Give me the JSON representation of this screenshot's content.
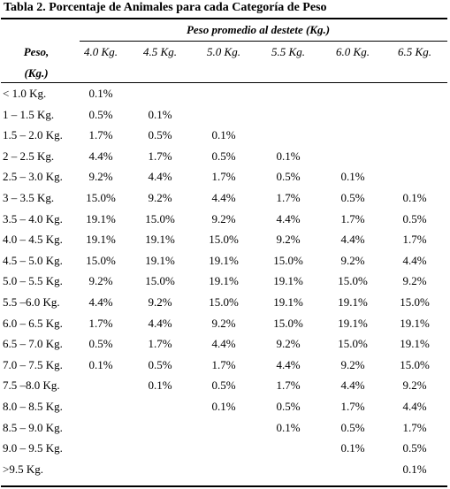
{
  "table": {
    "title": "Tabla 2.  Porcentaje de Animales para cada Categoría de Peso",
    "span_header": "Peso promedio al destete (Kg.)",
    "row_header_line1": "Peso,",
    "row_header_line2": "(Kg.)",
    "columns": [
      "4.0 Kg.",
      "4.5 Kg.",
      "5.0 Kg.",
      "5.5 Kg.",
      "6.0 Kg.",
      "6.5 Kg."
    ],
    "rows": [
      {
        "label": "< 1.0 Kg.",
        "values": [
          "0.1%",
          "",
          "",
          "",
          "",
          ""
        ]
      },
      {
        "label": "1 – 1.5 Kg.",
        "values": [
          "0.5%",
          "0.1%",
          "",
          "",
          "",
          ""
        ]
      },
      {
        "label": "1.5 – 2.0 Kg.",
        "values": [
          "1.7%",
          "0.5%",
          "0.1%",
          "",
          "",
          ""
        ]
      },
      {
        "label": "2 – 2.5 Kg.",
        "values": [
          "4.4%",
          "1.7%",
          "0.5%",
          "0.1%",
          "",
          ""
        ]
      },
      {
        "label": "2.5 – 3.0 Kg.",
        "values": [
          "9.2%",
          "4.4%",
          "1.7%",
          "0.5%",
          "0.1%",
          ""
        ]
      },
      {
        "label": "3 – 3.5 Kg.",
        "values": [
          "15.0%",
          "9.2%",
          "4.4%",
          "1.7%",
          "0.5%",
          "0.1%"
        ]
      },
      {
        "label": "3.5 – 4.0 Kg.",
        "values": [
          "19.1%",
          "15.0%",
          "9.2%",
          "4.4%",
          "1.7%",
          "0.5%"
        ]
      },
      {
        "label": "4.0 – 4.5 Kg.",
        "values": [
          "19.1%",
          "19.1%",
          "15.0%",
          "9.2%",
          "4.4%",
          "1.7%"
        ]
      },
      {
        "label": "4.5 – 5.0 Kg.",
        "values": [
          "15.0%",
          "19.1%",
          "19.1%",
          "15.0%",
          "9.2%",
          "4.4%"
        ]
      },
      {
        "label": "5.0 – 5.5 Kg.",
        "values": [
          "9.2%",
          "15.0%",
          "19.1%",
          "19.1%",
          "15.0%",
          "9.2%"
        ]
      },
      {
        "label": "5.5 –6.0 Kg.",
        "values": [
          "4.4%",
          "9.2%",
          "15.0%",
          "19.1%",
          "19.1%",
          "15.0%"
        ]
      },
      {
        "label": "6.0 – 6.5 Kg.",
        "values": [
          "1.7%",
          "4.4%",
          "9.2%",
          "15.0%",
          "19.1%",
          "19.1%"
        ]
      },
      {
        "label": "6.5 – 7.0 Kg.",
        "values": [
          "0.5%",
          "1.7%",
          "4.4%",
          "9.2%",
          "15.0%",
          "19.1%"
        ]
      },
      {
        "label": "7.0 – 7.5 Kg.",
        "values": [
          "0.1%",
          "0.5%",
          "1.7%",
          "4.4%",
          "9.2%",
          "15.0%"
        ]
      },
      {
        "label": "7.5 –8.0 Kg.",
        "values": [
          "",
          "0.1%",
          "0.5%",
          "1.7%",
          "4.4%",
          "9.2%"
        ]
      },
      {
        "label": "8.0 – 8.5 Kg.",
        "values": [
          "",
          "",
          "0.1%",
          "0.5%",
          "1.7%",
          "4.4%"
        ]
      },
      {
        "label": "8.5  – 9.0 Kg.",
        "values": [
          "",
          "",
          "",
          "0.1%",
          "0.5%",
          "1.7%"
        ]
      },
      {
        "label": "9.0 – 9.5 Kg.",
        "values": [
          "",
          "",
          "",
          "",
          "0.1%",
          "0.5%"
        ]
      },
      {
        "label": ">9.5 Kg.",
        "values": [
          "",
          "",
          "",
          "",
          "",
          "0.1%"
        ]
      }
    ]
  }
}
